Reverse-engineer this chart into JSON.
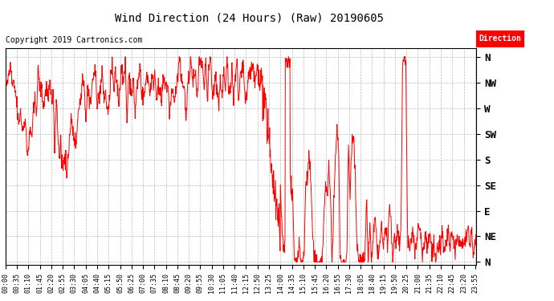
{
  "title": "Wind Direction (24 Hours) (Raw) 20190605",
  "copyright": "Copyright 2019 Cartronics.com",
  "line_color": "#FF0000",
  "background_color": "#FFFFFF",
  "grid_color": "#AAAAAA",
  "ylabel_labels": [
    "N",
    "NW",
    "W",
    "SW",
    "S",
    "SE",
    "E",
    "NE",
    "N"
  ],
  "ylabel_values": [
    360,
    315,
    270,
    225,
    180,
    135,
    90,
    45,
    0
  ],
  "ylim": [
    -5,
    375
  ],
  "legend_label": "Direction",
  "legend_bg": "#FF0000",
  "legend_text_color": "#FFFFFF",
  "x_tick_interval_minutes": 35,
  "total_minutes": 1440
}
